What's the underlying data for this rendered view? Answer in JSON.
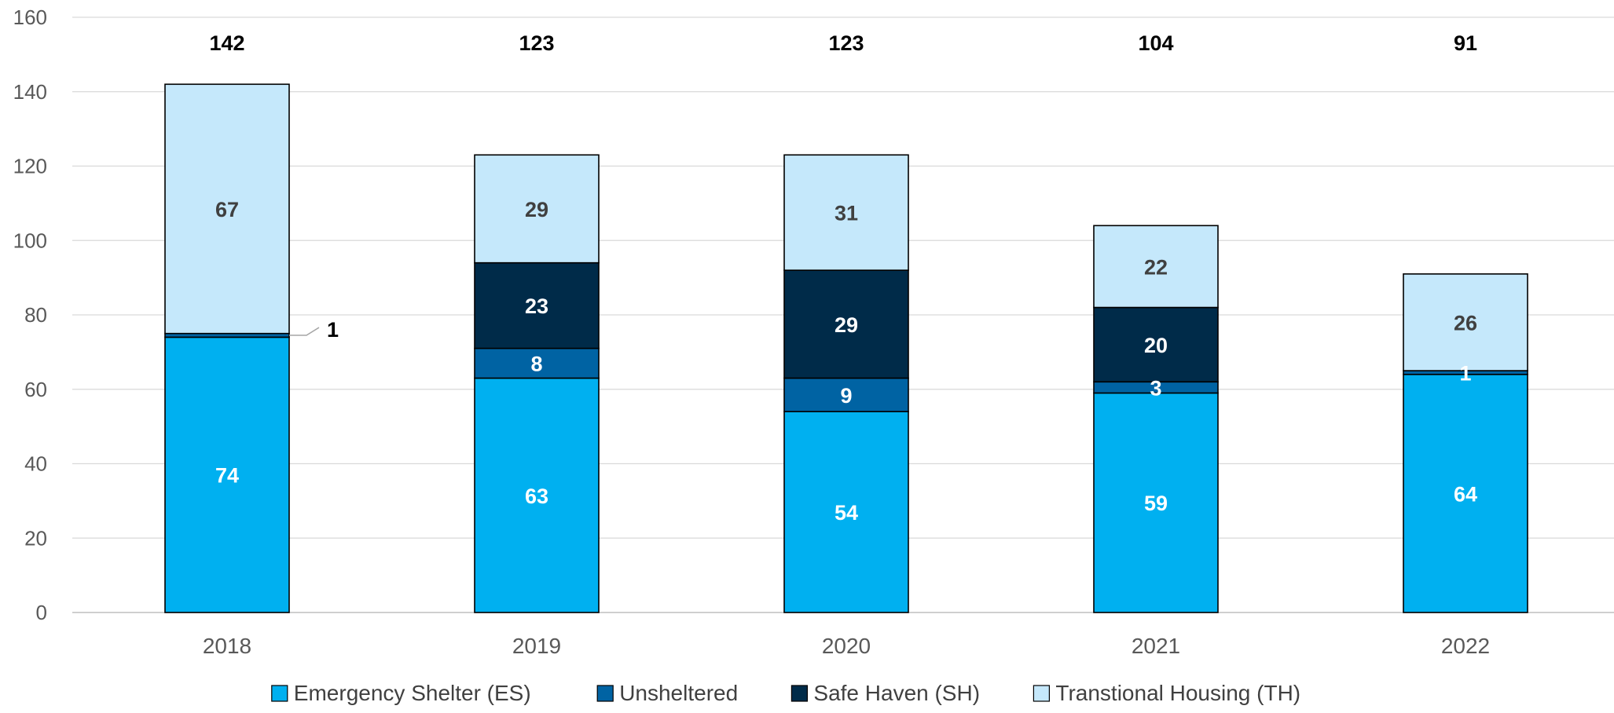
{
  "chart_data": {
    "type": "bar",
    "stacked": true,
    "title": "",
    "xlabel": "",
    "ylabel": "",
    "ylim": [
      0,
      160
    ],
    "yticks": [
      0,
      20,
      40,
      60,
      80,
      100,
      120,
      140,
      160
    ],
    "grid": true,
    "legend_position": "bottom",
    "categories": [
      "2018",
      "2019",
      "2020",
      "2021",
      "2022"
    ],
    "totals": [
      142,
      123,
      123,
      104,
      91
    ],
    "series": [
      {
        "name": "Emergency Shelter (ES)",
        "values": [
          74,
          63,
          54,
          59,
          64
        ],
        "color": "#00B0F0",
        "label_color": "#FFFFFF"
      },
      {
        "name": "Unsheltered",
        "values": [
          1,
          8,
          9,
          3,
          1
        ],
        "color": "#0063A3",
        "label_color": "#FFFFFF"
      },
      {
        "name": "Safe Haven (SH)",
        "values": [
          0,
          23,
          29,
          20,
          0
        ],
        "color": "#002B49",
        "label_color": "#FFFFFF"
      },
      {
        "name": "Transtional Housing (TH)",
        "values": [
          67,
          29,
          31,
          22,
          26
        ],
        "color": "#C5E8FB",
        "label_color": "#404040"
      }
    ],
    "callout": {
      "category": "2018",
      "series": "Unsheltered",
      "text": "1"
    }
  }
}
